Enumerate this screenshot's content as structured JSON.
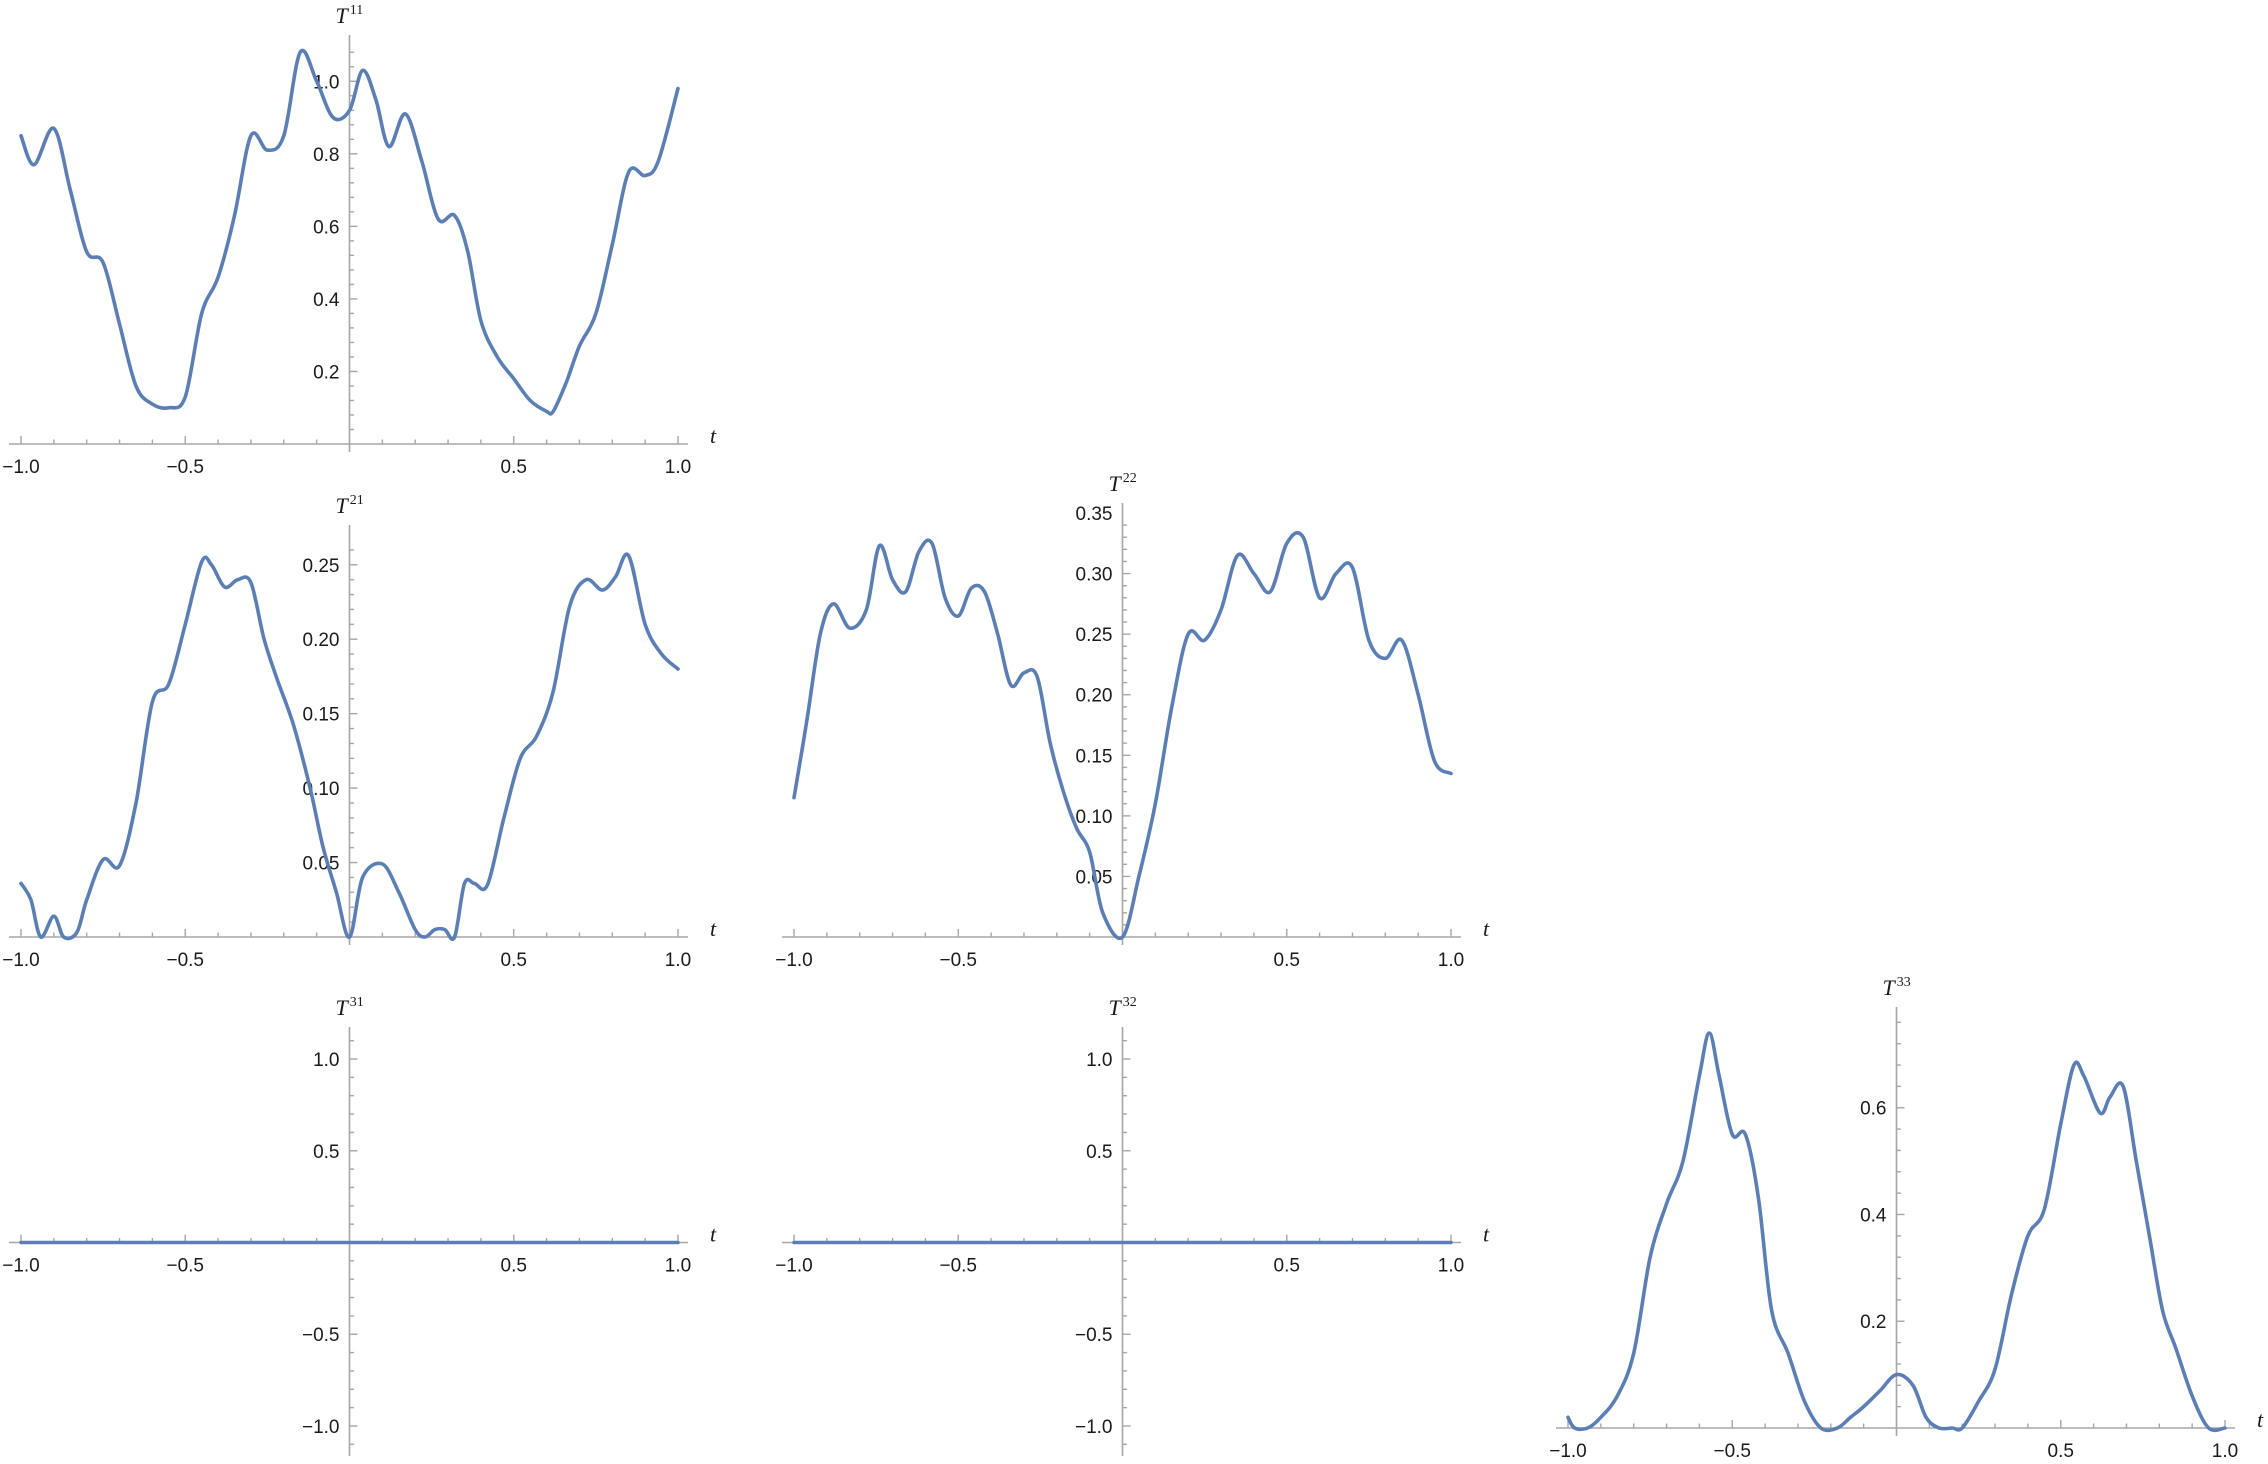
{
  "chart_data": [
    {
      "id": "T11",
      "type": "line",
      "title": "T",
      "title_sup": "11",
      "xlabel": "t",
      "xlim": [
        -1.0,
        1.0
      ],
      "ylim": [
        0,
        1.1
      ],
      "x_ticks": [
        -1.0,
        -0.5,
        0.5,
        1.0
      ],
      "x_tick_labels": [
        "−1.0",
        "−0.5",
        "0.5",
        "1.0"
      ],
      "y_ticks": [
        0.2,
        0.4,
        0.6,
        0.8,
        1.0
      ],
      "y_tick_labels": [
        "0.2",
        "0.4",
        "0.6",
        "0.8",
        "1.0"
      ],
      "color": "#5b7fb5",
      "series": [
        {
          "x": [
            -1.0,
            -0.96,
            -0.9,
            -0.85,
            -0.8,
            -0.75,
            -0.7,
            -0.65,
            -0.6,
            -0.55,
            -0.5,
            -0.45,
            -0.4,
            -0.35,
            -0.3,
            -0.25,
            -0.2,
            -0.15,
            -0.1,
            -0.05,
            0.0,
            0.04,
            0.08,
            0.12,
            0.17,
            0.22,
            0.27,
            0.32,
            0.36,
            0.4,
            0.45,
            0.5,
            0.55,
            0.6,
            0.62,
            0.66,
            0.7,
            0.75,
            0.8,
            0.85,
            0.9,
            0.94,
            1.0
          ],
          "y": [
            0.85,
            0.77,
            0.87,
            0.7,
            0.53,
            0.5,
            0.33,
            0.16,
            0.11,
            0.1,
            0.13,
            0.36,
            0.46,
            0.63,
            0.85,
            0.81,
            0.85,
            1.08,
            1.0,
            0.9,
            0.92,
            1.03,
            0.95,
            0.82,
            0.91,
            0.78,
            0.62,
            0.63,
            0.53,
            0.34,
            0.24,
            0.18,
            0.12,
            0.09,
            0.09,
            0.17,
            0.27,
            0.36,
            0.55,
            0.75,
            0.74,
            0.78,
            0.98
          ]
        }
      ]
    },
    {
      "id": "T21",
      "type": "line",
      "title": "T",
      "title_sup": "21",
      "xlabel": "t",
      "xlim": [
        -1.0,
        1.0
      ],
      "ylim": [
        0,
        0.27
      ],
      "x_ticks": [
        -1.0,
        -0.5,
        0.5,
        1.0
      ],
      "x_tick_labels": [
        "−1.0",
        "−0.5",
        "0.5",
        "1.0"
      ],
      "y_ticks": [
        0.05,
        0.1,
        0.15,
        0.2,
        0.25
      ],
      "y_tick_labels": [
        "0.05",
        "0.10",
        "0.15",
        "0.20",
        "0.25"
      ],
      "color": "#5b7fb5",
      "series": [
        {
          "x": [
            -1.0,
            -0.97,
            -0.94,
            -0.9,
            -0.87,
            -0.83,
            -0.8,
            -0.75,
            -0.7,
            -0.65,
            -0.6,
            -0.55,
            -0.5,
            -0.45,
            -0.42,
            -0.38,
            -0.34,
            -0.3,
            -0.26,
            -0.22,
            -0.17,
            -0.12,
            -0.08,
            -0.04,
            0.0,
            0.04,
            0.1,
            0.15,
            0.2,
            0.23,
            0.26,
            0.29,
            0.32,
            0.35,
            0.38,
            0.42,
            0.47,
            0.52,
            0.57,
            0.62,
            0.67,
            0.72,
            0.77,
            0.81,
            0.85,
            0.9,
            0.95,
            1.0
          ],
          "y": [
            0.036,
            0.025,
            0.0,
            0.014,
            0.0,
            0.003,
            0.025,
            0.052,
            0.048,
            0.09,
            0.158,
            0.17,
            0.21,
            0.252,
            0.25,
            0.235,
            0.24,
            0.238,
            0.2,
            0.173,
            0.142,
            0.1,
            0.06,
            0.03,
            0.0,
            0.04,
            0.049,
            0.03,
            0.005,
            0.0,
            0.005,
            0.005,
            0.0,
            0.036,
            0.036,
            0.035,
            0.08,
            0.12,
            0.135,
            0.165,
            0.222,
            0.24,
            0.233,
            0.242,
            0.256,
            0.21,
            0.19,
            0.18
          ]
        }
      ]
    },
    {
      "id": "T22",
      "type": "line",
      "title": "T",
      "title_sup": "22",
      "xlabel": "t",
      "xlim": [
        -1.0,
        1.0
      ],
      "ylim": [
        0,
        0.35
      ],
      "x_ticks": [
        -1.0,
        -0.5,
        0.5,
        1.0
      ],
      "x_tick_labels": [
        "−1.0",
        "−0.5",
        "0.5",
        "1.0"
      ],
      "y_ticks": [
        0.05,
        0.1,
        0.15,
        0.2,
        0.25,
        0.3,
        0.35
      ],
      "y_tick_labels": [
        "0.05",
        "0.10",
        "0.15",
        "0.20",
        "0.25",
        "0.30",
        "0.35"
      ],
      "color": "#5b7fb5",
      "series": [
        {
          "x": [
            -1.0,
            -0.96,
            -0.92,
            -0.88,
            -0.83,
            -0.78,
            -0.74,
            -0.7,
            -0.66,
            -0.62,
            -0.58,
            -0.54,
            -0.5,
            -0.46,
            -0.42,
            -0.38,
            -0.34,
            -0.3,
            -0.26,
            -0.22,
            -0.18,
            -0.14,
            -0.1,
            -0.06,
            0.0,
            0.05,
            0.1,
            0.15,
            0.2,
            0.25,
            0.3,
            0.35,
            0.4,
            0.45,
            0.5,
            0.55,
            0.6,
            0.65,
            0.7,
            0.75,
            0.8,
            0.85,
            0.9,
            0.95,
            1.0
          ],
          "y": [
            0.115,
            0.18,
            0.25,
            0.275,
            0.255,
            0.27,
            0.323,
            0.295,
            0.285,
            0.318,
            0.325,
            0.28,
            0.265,
            0.288,
            0.285,
            0.25,
            0.208,
            0.218,
            0.215,
            0.16,
            0.12,
            0.09,
            0.07,
            0.02,
            0.0,
            0.05,
            0.11,
            0.19,
            0.25,
            0.245,
            0.27,
            0.315,
            0.3,
            0.285,
            0.325,
            0.33,
            0.28,
            0.3,
            0.305,
            0.245,
            0.23,
            0.245,
            0.2,
            0.145,
            0.135
          ]
        }
      ]
    },
    {
      "id": "T31",
      "type": "line",
      "title": "T",
      "title_sup": "31",
      "xlabel": "t",
      "xlim": [
        -1.0,
        1.0
      ],
      "ylim": [
        -1.12,
        1.12
      ],
      "x_ticks": [
        -1.0,
        -0.5,
        0.5,
        1.0
      ],
      "x_tick_labels": [
        "−1.0",
        "−0.5",
        "0.5",
        "1.0"
      ],
      "y_ticks": [
        -1.0,
        -0.5,
        0.5,
        1.0
      ],
      "y_tick_labels": [
        "−1.0",
        "−0.5",
        "0.5",
        "1.0"
      ],
      "color": "#5b7fb5",
      "series": [
        {
          "x": [
            -1.0,
            1.0
          ],
          "y": [
            0.0,
            0.0
          ]
        }
      ]
    },
    {
      "id": "T32",
      "type": "line",
      "title": "T",
      "title_sup": "32",
      "xlabel": "t",
      "xlim": [
        -1.0,
        1.0
      ],
      "ylim": [
        -1.12,
        1.12
      ],
      "x_ticks": [
        -1.0,
        -0.5,
        0.5,
        1.0
      ],
      "x_tick_labels": [
        "−1.0",
        "−0.5",
        "0.5",
        "1.0"
      ],
      "y_ticks": [
        -1.0,
        -0.5,
        0.5,
        1.0
      ],
      "y_tick_labels": [
        "−1.0",
        "−0.5",
        "0.5",
        "1.0"
      ],
      "color": "#5b7fb5",
      "series": [
        {
          "x": [
            -1.0,
            1.0
          ],
          "y": [
            0.0,
            0.0
          ]
        }
      ]
    },
    {
      "id": "T33",
      "type": "line",
      "title": "T",
      "title_sup": "33",
      "xlabel": "t",
      "xlim": [
        -1.0,
        1.0
      ],
      "ylim": [
        0,
        0.77
      ],
      "x_ticks": [
        -1.0,
        -0.5,
        0.5,
        1.0
      ],
      "x_tick_labels": [
        "−1.0",
        "−0.5",
        "0.5",
        "1.0"
      ],
      "y_ticks": [
        0.2,
        0.4,
        0.6
      ],
      "y_tick_labels": [
        "0.2",
        "0.4",
        "0.6"
      ],
      "color": "#5b7fb5",
      "series": [
        {
          "x": [
            -1.0,
            -0.98,
            -0.94,
            -0.9,
            -0.85,
            -0.8,
            -0.75,
            -0.7,
            -0.65,
            -0.6,
            -0.57,
            -0.54,
            -0.5,
            -0.46,
            -0.42,
            -0.38,
            -0.33,
            -0.28,
            -0.23,
            -0.18,
            -0.14,
            -0.1,
            -0.05,
            0.0,
            0.05,
            0.09,
            0.13,
            0.17,
            0.2,
            0.25,
            0.3,
            0.35,
            0.4,
            0.45,
            0.5,
            0.54,
            0.57,
            0.62,
            0.65,
            0.69,
            0.73,
            0.77,
            0.81,
            0.85,
            0.9,
            0.95,
            1.0
          ],
          "y": [
            0.02,
            0.0,
            0.0,
            0.02,
            0.06,
            0.14,
            0.32,
            0.42,
            0.5,
            0.66,
            0.74,
            0.66,
            0.55,
            0.55,
            0.43,
            0.22,
            0.14,
            0.05,
            0.0,
            0.0,
            0.02,
            0.04,
            0.07,
            0.1,
            0.08,
            0.02,
            0.0,
            0.0,
            0.0,
            0.05,
            0.11,
            0.25,
            0.36,
            0.41,
            0.57,
            0.68,
            0.66,
            0.59,
            0.62,
            0.64,
            0.5,
            0.36,
            0.22,
            0.15,
            0.06,
            0.0,
            0.0
          ]
        }
      ]
    }
  ]
}
